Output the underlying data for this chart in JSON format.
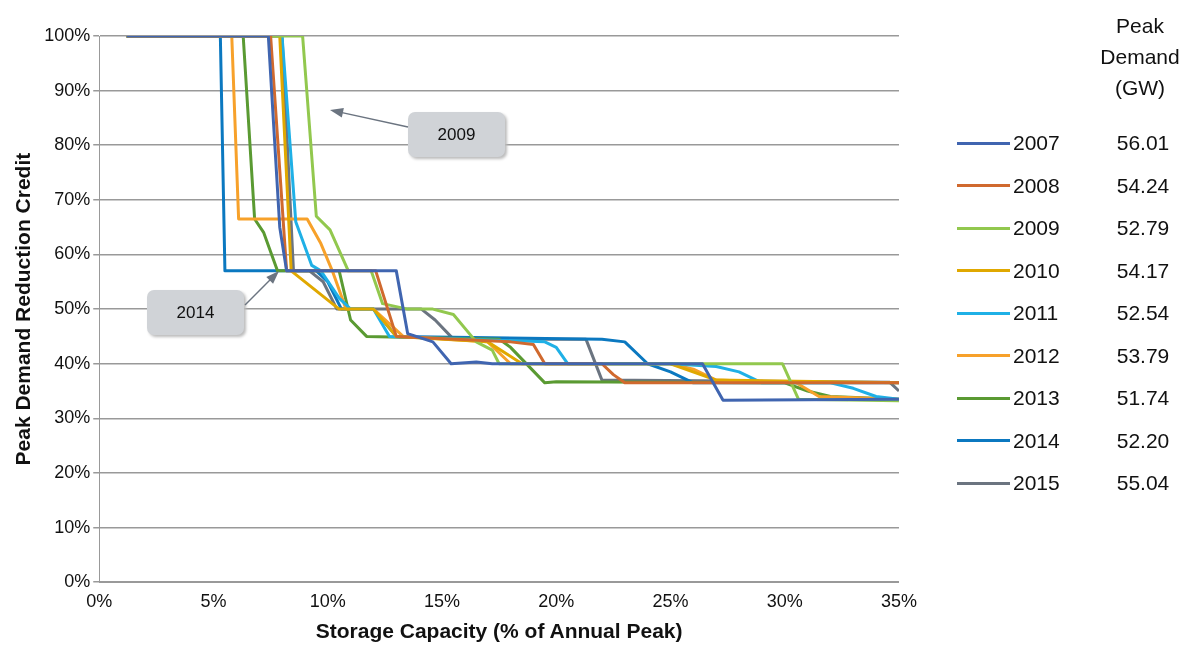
{
  "chart_data": {
    "type": "line",
    "xlabel": "Storage Capacity (% of Annual Peak)",
    "ylabel": "Peak Demand Reduction Credit",
    "legend_title": "Peak Demand (GW)",
    "legend": "right",
    "grid": "y",
    "marker": "none",
    "line_style": "solid",
    "xlim": [
      0,
      35
    ],
    "xticks": [
      {
        "value": 0,
        "label": "0%"
      },
      {
        "value": 5,
        "label": "5%"
      },
      {
        "value": 10,
        "label": "10%"
      },
      {
        "value": 15,
        "label": "15%"
      },
      {
        "value": 20,
        "label": "20%"
      },
      {
        "value": 25,
        "label": "25%"
      },
      {
        "value": 30,
        "label": "30%"
      },
      {
        "value": 35,
        "label": "35%"
      }
    ],
    "ylim": [
      0,
      100
    ],
    "yticks": [
      {
        "value": 0,
        "label": "0%"
      },
      {
        "value": 10,
        "label": "10%"
      },
      {
        "value": 20,
        "label": "20%"
      },
      {
        "value": 30,
        "label": "30%"
      },
      {
        "value": 40,
        "label": "40%"
      },
      {
        "value": 50,
        "label": "50%"
      },
      {
        "value": 60,
        "label": "60%"
      },
      {
        "value": 70,
        "label": "70%"
      },
      {
        "value": 80,
        "label": "80%"
      },
      {
        "value": 90,
        "label": "90%"
      },
      {
        "value": 100,
        "label": "100%"
      }
    ],
    "annotations": [
      "2009",
      "2014",
      "56.01",
      "54.24",
      "52.79",
      "54.17",
      "52.54",
      "53.79",
      "51.74",
      "52.20",
      "55.04"
    ],
    "series": [
      {
        "name": "2007",
        "color": "#4065b0",
        "x": [
          1.2,
          7.4,
          7.9,
          8.2,
          12.3,
          13.0,
          13.5,
          14.6,
          15.4,
          16.5,
          17.2,
          26.4,
          27.3,
          35
        ],
        "values": [
          100,
          100,
          65,
          57,
          57,
          57,
          45.5,
          44,
          40,
          40.3,
          40,
          40,
          33.3,
          33.5
        ]
      },
      {
        "name": "2008",
        "color": "#d0692e",
        "x": [
          1.2,
          7.5,
          8.2,
          12.1,
          13.0,
          18.0,
          19.0,
          19.5,
          22.0,
          22.5,
          23.0,
          35
        ],
        "values": [
          100,
          100,
          57,
          57,
          45,
          44,
          43.5,
          40,
          40,
          38,
          36.5,
          36.5
        ]
      },
      {
        "name": "2009",
        "color": "#92c84e",
        "x": [
          1.2,
          8.9,
          9.5,
          10.1,
          10.9,
          11.9,
          12.4,
          13.5,
          14.6,
          15.5,
          16.5,
          17.2,
          17.5,
          29.9,
          30.6,
          35
        ],
        "values": [
          100,
          100,
          67,
          64.5,
          57,
          57,
          51,
          50,
          50,
          49,
          44,
          42.5,
          40,
          40,
          33.5,
          33.2
        ]
      },
      {
        "name": "2010",
        "color": "#e0a800",
        "x": [
          1.2,
          7.9,
          8.4,
          10.5,
          12.0,
          13.0,
          17.0,
          18.5,
          25.0,
          27.0,
          35
        ],
        "values": [
          100,
          100,
          57,
          50,
          50,
          45,
          44,
          40,
          40,
          37,
          36.5
        ]
      },
      {
        "name": "2011",
        "color": "#1fb0e6",
        "x": [
          1.2,
          8.0,
          8.6,
          9.3,
          9.7,
          10.5,
          11.0,
          12.0,
          12.7,
          19.5,
          20.0,
          20.5,
          25.0,
          27.0,
          28.0,
          29.0,
          32.0,
          33.0,
          34.0,
          35
        ],
        "values": [
          100,
          100,
          66,
          58,
          57,
          52,
          50,
          50,
          45,
          44,
          43,
          40,
          40,
          39.5,
          38.5,
          36.5,
          36.5,
          35.5,
          34,
          33.5
        ]
      },
      {
        "name": "2012",
        "color": "#f7a12a",
        "x": [
          1.2,
          5.8,
          6.1,
          9.1,
          9.7,
          10.2,
          10.8,
          12.0,
          13.3,
          17.0,
          18.0,
          25.0,
          26.0,
          27.0,
          30.5,
          31.5,
          35
        ],
        "values": [
          100,
          100,
          66.5,
          66.5,
          62,
          57,
          50,
          50,
          45,
          44,
          40,
          40,
          39,
          37,
          36.5,
          34,
          33.5
        ]
      },
      {
        "name": "2013",
        "color": "#5a9a32",
        "x": [
          1.2,
          6.3,
          6.8,
          7.2,
          7.8,
          10.5,
          11.0,
          11.7,
          17.5,
          18.0,
          19.5,
          20.0,
          30.0,
          31.0,
          32.0,
          35
        ],
        "values": [
          100,
          100,
          66.5,
          64,
          57,
          57,
          48,
          45,
          44.5,
          43,
          36.5,
          36.7,
          36.5,
          35,
          34,
          33.5
        ]
      },
      {
        "name": "2014",
        "color": "#0b78c0",
        "x": [
          1.2,
          5.3,
          5.5,
          9.5,
          10.0,
          10.6,
          12.0,
          13.0,
          22.0,
          23.0,
          24.0,
          25.0,
          26.0,
          35
        ],
        "values": [
          100,
          100,
          57,
          57,
          55,
          50,
          50,
          45,
          44.5,
          44,
          40,
          38.5,
          36.5,
          36.5
        ]
      },
      {
        "name": "2015",
        "color": "#6b7480",
        "x": [
          1.2,
          8.0,
          8.5,
          9.2,
          9.8,
          10.4,
          14.1,
          14.7,
          15.5,
          21.3,
          22.0,
          34.6,
          35
        ],
        "values": [
          100,
          100,
          57,
          57,
          55,
          50,
          50,
          48,
          44.5,
          44.5,
          37,
          36.6,
          35
        ]
      }
    ]
  }
}
